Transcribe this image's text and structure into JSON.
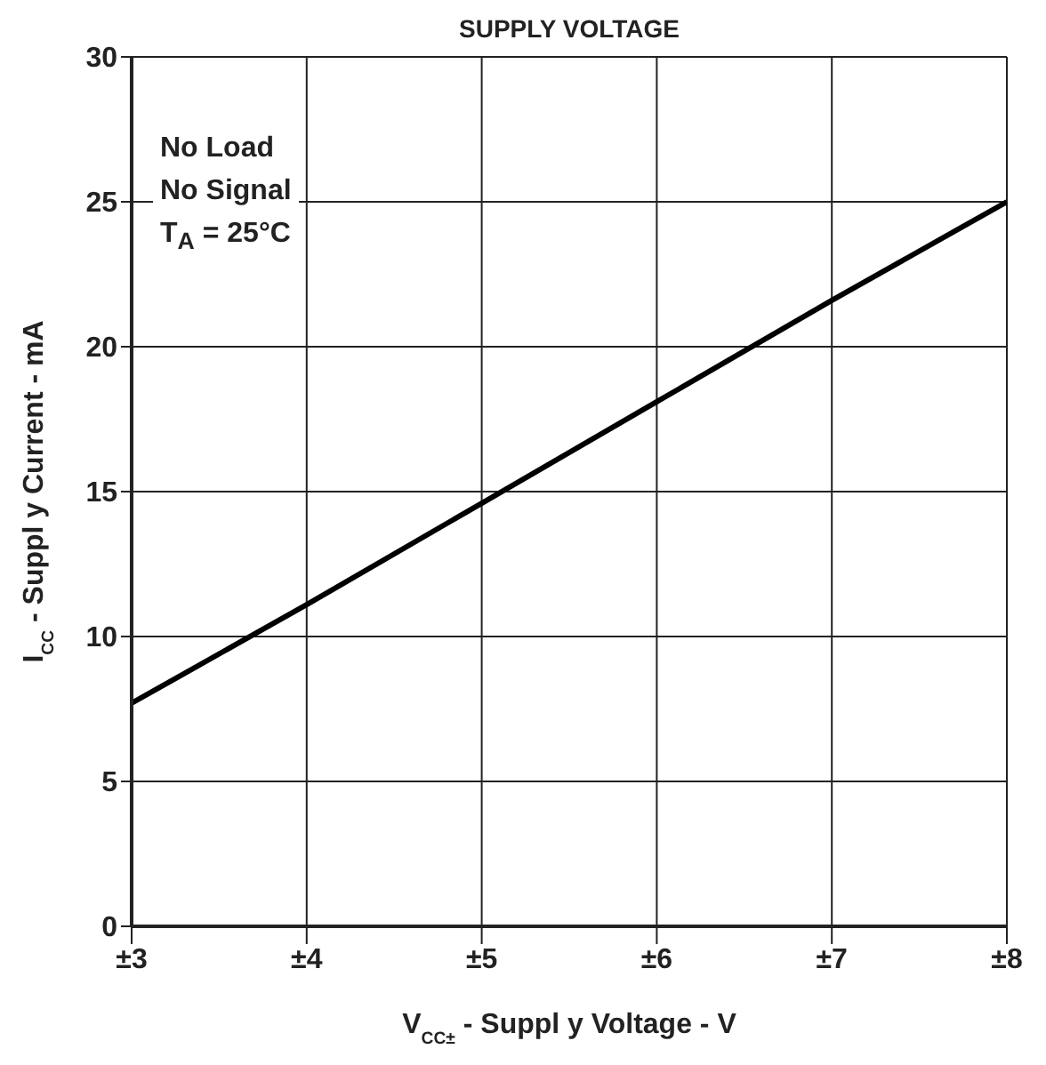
{
  "chart_data": {
    "type": "line",
    "title": "SUPPLY VOLTAGE",
    "xlabel": "V$_{CC±}$ - Suppl y Voltage - V",
    "ylabel": "I$_{CC}$ - Suppl y Current - mA",
    "annotations": [
      "No Load",
      "No Signal",
      "T$_{A}$ = 25°C"
    ],
    "x": [
      3,
      4,
      5,
      6,
      7,
      8
    ],
    "series": [
      {
        "color": "#000000",
        "values": [
          7.7,
          11.1,
          14.6,
          18.1,
          21.6,
          25
        ]
      }
    ],
    "xlim": [
      3,
      8
    ],
    "ylim": [
      0,
      30
    ],
    "xticks": [
      {
        "value": 3,
        "label": "±3"
      },
      {
        "value": 4,
        "label": "±4"
      },
      {
        "value": 5,
        "label": "±5"
      },
      {
        "value": 6,
        "label": "±6"
      },
      {
        "value": 7,
        "label": "±7"
      },
      {
        "value": 8,
        "label": "±8"
      }
    ],
    "yticks": [
      0,
      5,
      10,
      15,
      20,
      25,
      30
    ],
    "grid": true,
    "legend": false,
    "marker": "none",
    "line_style": "solid"
  }
}
